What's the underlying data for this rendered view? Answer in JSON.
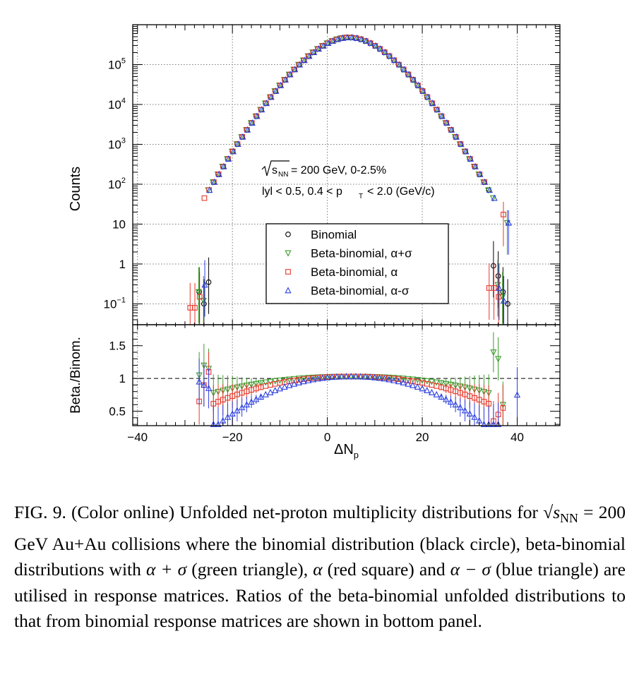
{
  "figure": {
    "caption_html": "FIG. 9. (Color online) Unfolded net-proton multiplicity distributions for <span class=\"math\">√s<sub style=\"font-style:normal;font-size:0.7em\">NN</sub></span> = 200 GeV Au+Au collisions where the binomial distribution (black circle), beta-binomial distributions with <span class=\"math\">α + σ</span> (green triangle), <span class=\"math\">α</span> (red square) and <span class=\"math\">α − σ</span> (blue triangle) are utilised in response matrices. Ratios of the beta-binomial unfolded distributions to that from binomial response matrices are shown in bottom panel.",
    "annotation_energy_prefix": "s",
    "annotation_energy_sub": "NN",
    "annotation_energy_text": "= 200 GeV, 0-2.5%",
    "annotation_cuts_a": "lyl < 0.5, 0.4 < p",
    "annotation_cuts_sub": "T",
    "annotation_cuts_b": "< 2.0 (GeV/c)"
  },
  "colors": {
    "binomial": "#000000",
    "alpha_plus_sigma": "#3c9b2c",
    "alpha": "#e8352a",
    "alpha_minus_sigma": "#2b3fe0",
    "grid": "#7a7a7a"
  },
  "chart_data": [
    {
      "type": "scatter",
      "panel": "top",
      "xlabel": "ΔN",
      "xlabel_sub": "p",
      "ylabel": "Counts",
      "xlim": [
        -41,
        49
      ],
      "ylog": true,
      "ylim": [
        0.03,
        1000000
      ],
      "x_ticks": [
        -40,
        -20,
        0,
        20,
        40
      ],
      "x_tick_labels": [
        "−40",
        "−20",
        "0",
        "20",
        "40"
      ],
      "y_ticks": [
        0.1,
        1,
        10,
        100,
        1000,
        10000,
        100000
      ],
      "y_tick_labels": [
        {
          "base": "10",
          "exp": "−1"
        },
        {
          "base": "1",
          "exp": ""
        },
        {
          "base": "10",
          "exp": ""
        },
        {
          "base": "10",
          "exp": "2"
        },
        {
          "base": "10",
          "exp": "3"
        },
        {
          "base": "10",
          "exp": "4"
        },
        {
          "base": "10",
          "exp": "5"
        }
      ],
      "grid": true,
      "legend_position": "center-right",
      "distribution": {
        "mean": 4.5,
        "sigma": 5.2,
        "peak": 480000
      },
      "series": [
        {
          "name": "Binomial",
          "marker": "circle-open",
          "color_key": "binomial",
          "x_range": [
            -27,
            38
          ],
          "tail_points": [
            [
              -27,
              0.2
            ],
            [
              -26,
              0.1
            ],
            [
              -25,
              0.35
            ],
            [
              35,
              0.9
            ],
            [
              36,
              0.5
            ],
            [
              37,
              0.2
            ],
            [
              38,
              0.1
            ]
          ]
        },
        {
          "name": "Beta-binomial, α+σ",
          "marker": "triangle-down-open",
          "color_key": "alpha_plus_sigma",
          "x_range": [
            -27,
            38
          ],
          "tail_points": [
            [
              -27,
              0.2
            ],
            [
              -26,
              0.12
            ],
            [
              36,
              0.3
            ],
            [
              37,
              0.15
            ]
          ]
        },
        {
          "name": "Beta-binomial, α",
          "marker": "square-open",
          "color_key": "alpha",
          "x_range": [
            -29,
            37
          ],
          "tail_points": [
            [
              -29,
              0.08
            ],
            [
              -28,
              0.08
            ],
            [
              -27,
              0.15
            ],
            [
              34,
              0.25
            ],
            [
              35,
              0.25
            ],
            [
              36,
              0.15
            ]
          ]
        },
        {
          "name": "Beta-binomial, α-σ",
          "marker": "triangle-up-open",
          "color_key": "alpha_minus_sigma",
          "x_range": [
            -26,
            38
          ],
          "tail_points": [
            [
              -26,
              0.3
            ],
            [
              36,
              0.25
            ],
            [
              37,
              0.12
            ]
          ]
        }
      ]
    },
    {
      "type": "scatter",
      "panel": "bottom",
      "ylabel": "Beta./Binom.",
      "xlim": [
        -41,
        49
      ],
      "ylim": [
        0.28,
        1.82
      ],
      "y_ticks": [
        0.5,
        1,
        1.5
      ],
      "y_tick_labels": [
        "0.5",
        "1",
        "1.5"
      ],
      "reference_line": 1,
      "series": [
        {
          "name": "Beta-binomial, α+σ",
          "color_key": "alpha_plus_sigma",
          "x_range": [
            -27,
            37
          ],
          "center": 5,
          "min_ratio": 0.72,
          "width": 32,
          "outliers": [
            [
              -27,
              1.05
            ],
            [
              -26,
              1.2
            ],
            [
              -25,
              1.15
            ],
            [
              35,
              1.4
            ],
            [
              36,
              1.3
            ],
            [
              37,
              0.6
            ]
          ]
        },
        {
          "name": "Beta-binomial, α",
          "color_key": "alpha",
          "x_range": [
            -27,
            37
          ],
          "center": 5,
          "min_ratio": 0.55,
          "width": 31,
          "outliers": [
            [
              -27,
              0.65
            ],
            [
              -26,
              0.9
            ],
            [
              -25,
              1.1
            ],
            [
              35,
              0.35
            ],
            [
              36,
              0.45
            ]
          ]
        },
        {
          "name": "Beta-binomial, α-σ",
          "color_key": "alpha_minus_sigma",
          "x_range": [
            -27,
            40
          ],
          "center": 5,
          "min_ratio": 0.3,
          "width": 28,
          "outliers": [
            [
              -27,
              0.95
            ],
            [
              -26,
              0.9
            ],
            [
              -25,
              0.85
            ],
            [
              36,
              0.3
            ],
            [
              40,
              0.75
            ]
          ]
        }
      ]
    }
  ]
}
